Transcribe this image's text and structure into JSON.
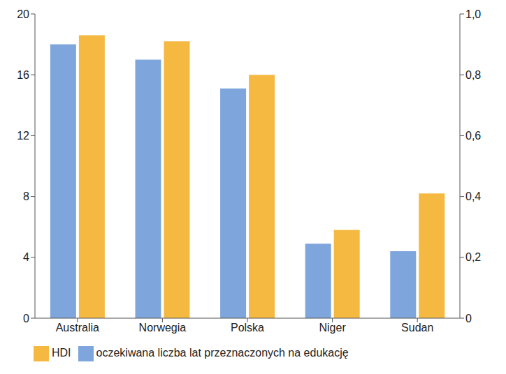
{
  "chart_data": {
    "type": "bar",
    "categories": [
      "Australia",
      "Norwegia",
      "Polska",
      "Niger",
      "Sudan"
    ],
    "series": [
      {
        "name": "oczekiwana liczba lat przeznaczonych na edukację",
        "color": "#7fa6dc",
        "values": [
          18.0,
          17.0,
          15.1,
          4.9,
          4.4
        ]
      },
      {
        "name": "HDI",
        "color": "#f5b942",
        "axis": "y2",
        "values": [
          0.93,
          0.91,
          0.8,
          0.29,
          0.41
        ]
      }
    ],
    "ylim": [
      0,
      20
    ],
    "yticks": [
      0,
      4,
      8,
      12,
      16,
      20
    ],
    "y2lim": [
      0,
      1.0
    ],
    "y2ticks": [
      0,
      {
        "value": 0.2,
        "label": "0,2"
      },
      {
        "value": 0.4,
        "label": "0,4"
      },
      {
        "value": 0.6,
        "label": "0,6"
      },
      {
        "value": 0.8,
        "label": "0,8"
      },
      {
        "value": 1.0,
        "label": "1,0"
      }
    ],
    "grid": false,
    "legend": "bottom"
  }
}
